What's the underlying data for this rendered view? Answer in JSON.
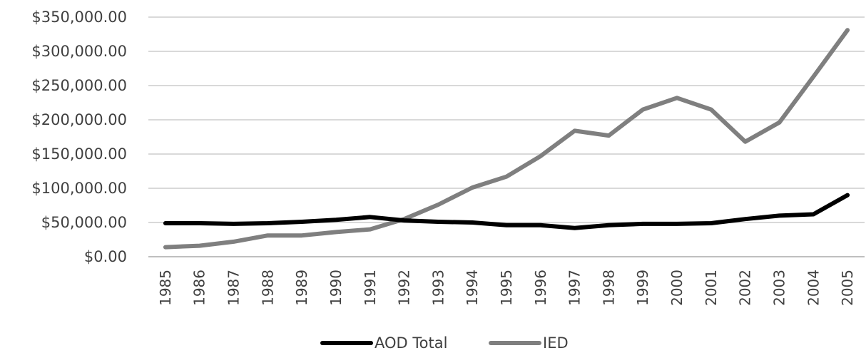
{
  "chart_data": {
    "type": "line",
    "title": "",
    "xlabel": "",
    "ylabel": "",
    "categories": [
      "1985",
      "1986",
      "1987",
      "1988",
      "1989",
      "1990",
      "1991",
      "1992",
      "1993",
      "1994",
      "1995",
      "1996",
      "1997",
      "1998",
      "1999",
      "2000",
      "2001",
      "2002",
      "2003",
      "2004",
      "2005"
    ],
    "ylim": [
      0,
      350000
    ],
    "y_ticks": [
      0,
      50000,
      100000,
      150000,
      200000,
      250000,
      300000,
      350000
    ],
    "y_tick_labels": [
      "$0.00",
      "$50,000.00",
      "$100,000.00",
      "$150,000.00",
      "$200,000.00",
      "$250,000.00",
      "$300,000.00",
      "$350,000.00"
    ],
    "grid": true,
    "legend_position": "bottom",
    "series": [
      {
        "name": "AOD Total",
        "color": "#000000",
        "values": [
          49000,
          49000,
          48000,
          49000,
          51000,
          54000,
          58000,
          53000,
          51000,
          50000,
          46000,
          46000,
          42000,
          46000,
          48000,
          48000,
          49000,
          55000,
          60000,
          62000,
          90000
        ]
      },
      {
        "name": "IED",
        "color": "#7f7f7f",
        "values": [
          14000,
          16000,
          22000,
          31000,
          31000,
          36000,
          40000,
          55000,
          76000,
          101000,
          117000,
          147000,
          184000,
          177000,
          215000,
          232000,
          215000,
          168000,
          196000,
          263000,
          331000
        ]
      }
    ]
  }
}
